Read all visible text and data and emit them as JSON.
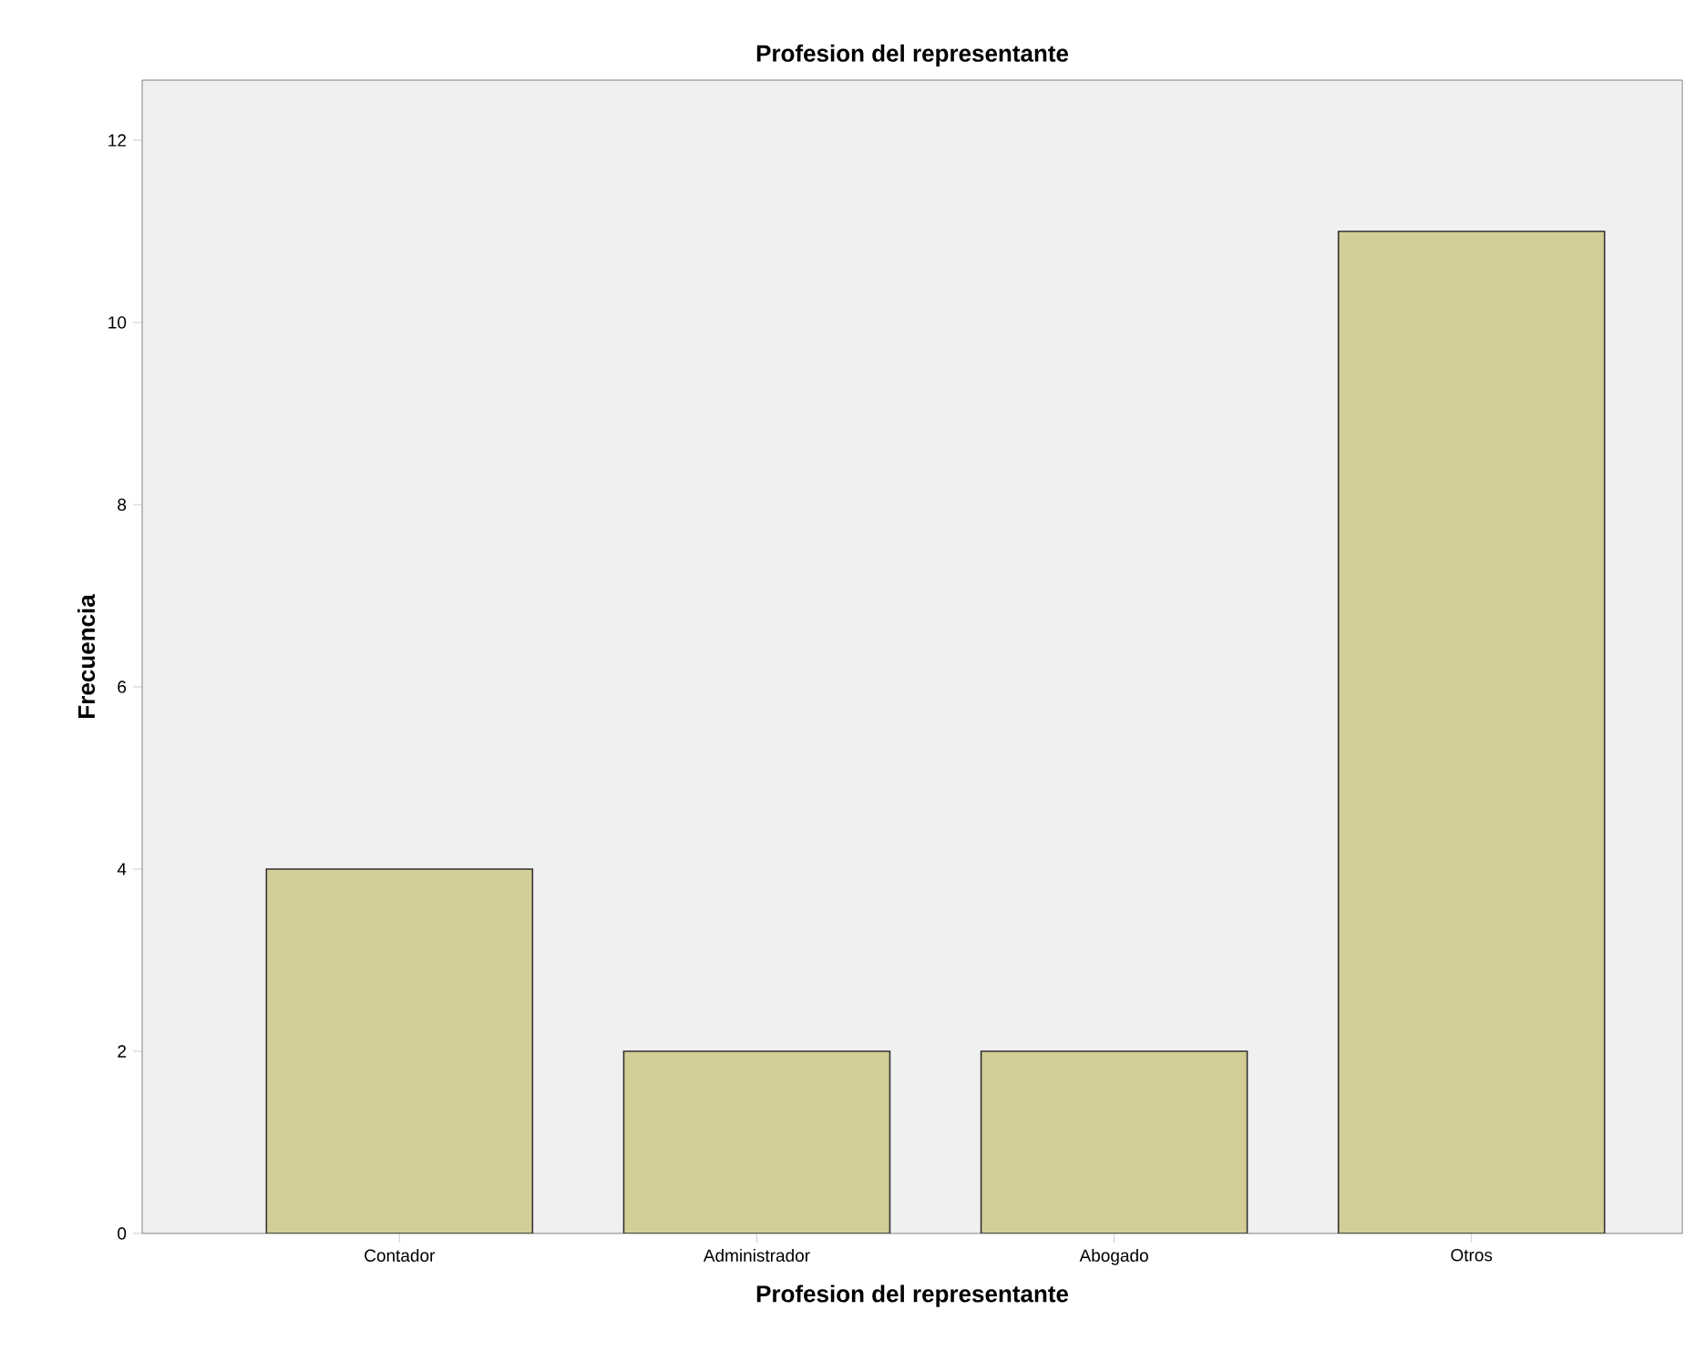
{
  "chart_data": {
    "type": "bar",
    "title": "Profesion del representante",
    "xlabel": "Profesion del representante",
    "ylabel": "Frecuencia",
    "categories": [
      "Contador",
      "Administrador",
      "Abogado",
      "Otros"
    ],
    "values": [
      4,
      2,
      2,
      11
    ],
    "color": "#d3ce97",
    "ylim": [
      0,
      12.66
    ],
    "yticks": [
      0,
      2,
      4,
      6,
      8,
      10,
      12
    ],
    "grid": false
  }
}
